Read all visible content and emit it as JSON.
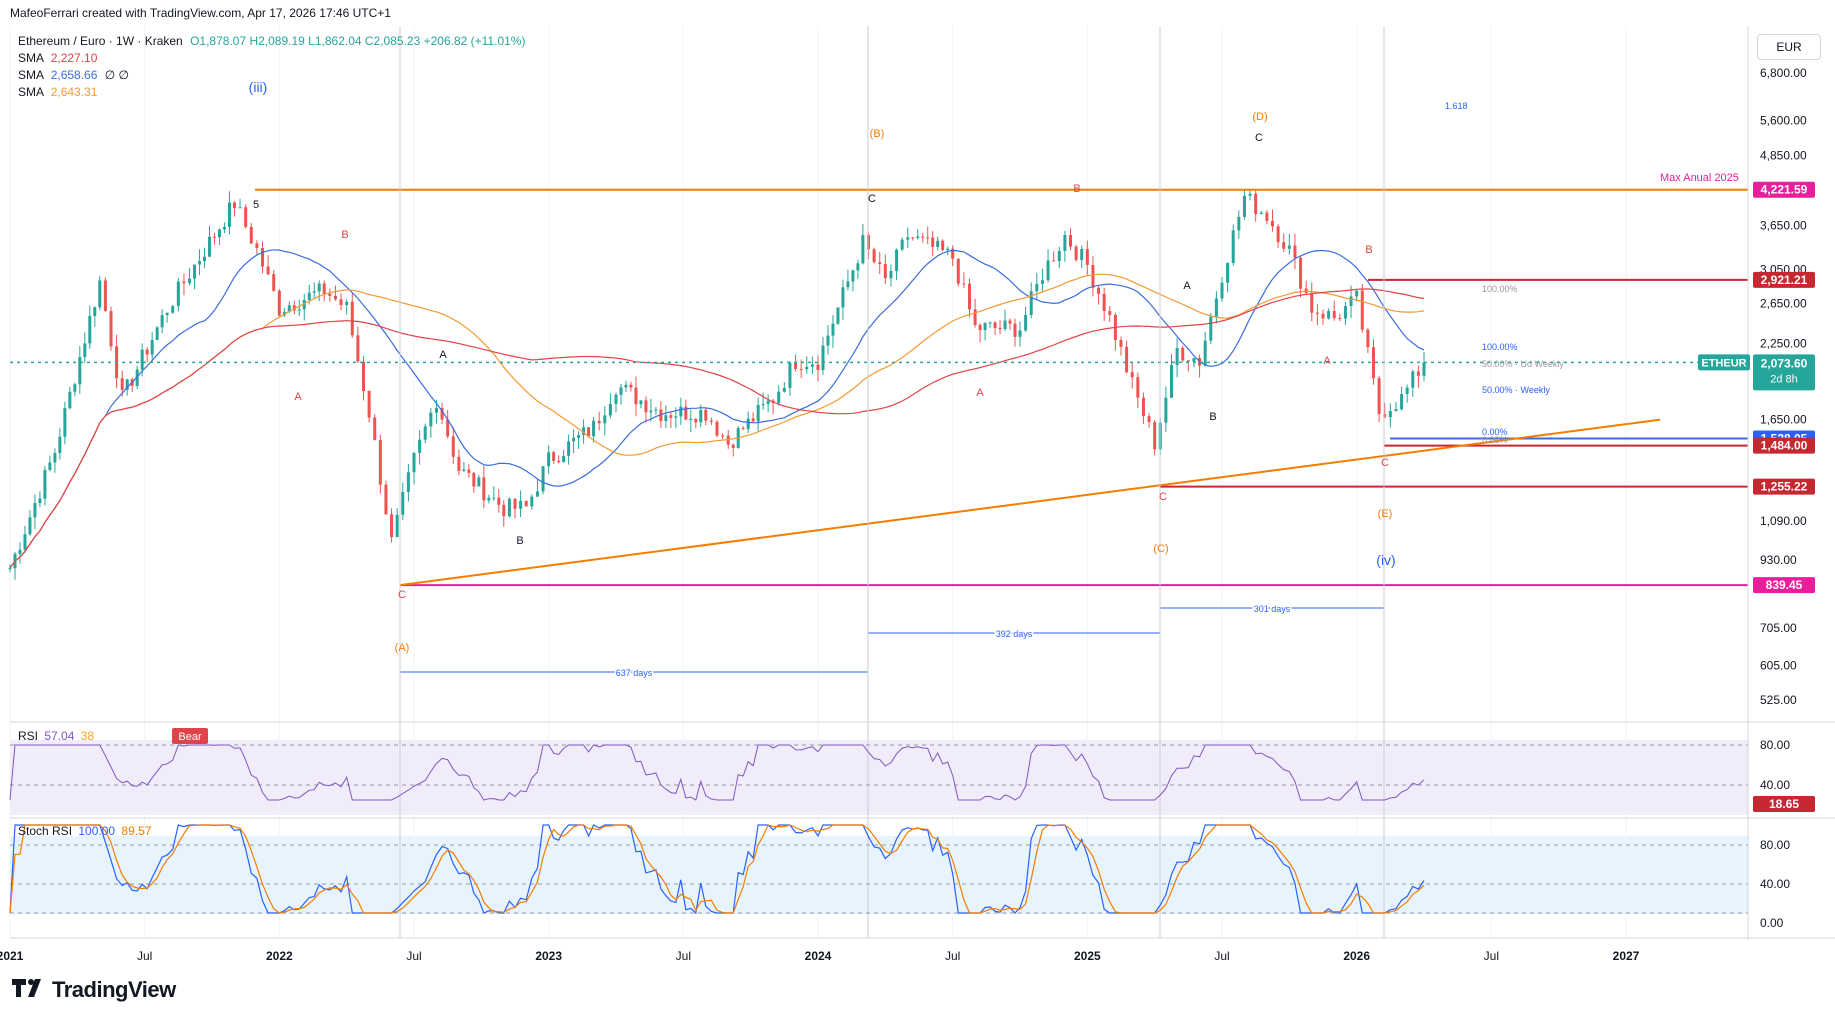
{
  "attribution": "MafeoFerrari created with TradingView.com, Apr 17, 2026 17:46 UTC+1",
  "currency": "EUR",
  "legend": {
    "symbol": "Ethereum / Euro · 1W · Kraken",
    "ohlc": "O1,878.07 H2,089.19 L1,862.04 C2,085.23 +206.82 (+11.01%)",
    "sma": [
      {
        "label": "SMA",
        "value": "2,227.10",
        "extra": "",
        "color": "#e0434a"
      },
      {
        "label": "SMA",
        "value": "2,658.66",
        "extra": "∅ ∅",
        "color": "#3b6de0"
      },
      {
        "label": "SMA",
        "value": "2,643.31",
        "extra": "",
        "color": "#f39a34"
      }
    ]
  },
  "rsi_legend": {
    "label": "RSI",
    "value": "57.04",
    "value2": "38"
  },
  "stoch_legend": {
    "label": "Stoch RSI",
    "value": "100.00",
    "value2": "89.57"
  },
  "brand": "TradingView",
  "colors": {
    "up": "#26a69a",
    "down": "#ef5350",
    "orange": "#f57c00",
    "magenta": "#e91e9c",
    "blue": "#3b6de0",
    "red": "#e0434a",
    "sma_orange": "#f39a34"
  },
  "chart_data": {
    "type": "line",
    "title": "Ethereum / Euro · 1W · Kraken",
    "y_scale": "log",
    "price_ticks": [
      "6,800.00",
      "5,600.00",
      "4,850.00",
      "3,650.00",
      "3,050.00",
      "2,650.00",
      "2,250.00",
      "1,650.00",
      "1,090.00",
      "930.00",
      "705.00",
      "605.00",
      "525.00"
    ],
    "time_ticks": [
      "2021",
      "Jul",
      "2022",
      "Jul",
      "2023",
      "Jul",
      "2024",
      "Jul",
      "2025",
      "Jul",
      "2026",
      "Jul",
      "2027"
    ],
    "price_tags": [
      {
        "value": "4,221.59",
        "color": "#e91e9c"
      },
      {
        "value": "2,921.21",
        "color": "#c62832"
      },
      {
        "value": "2,085.23",
        "color": "#26a69a",
        "symbol": "ETHEUR",
        "countdown": "2d 8h"
      },
      {
        "value": "2,073.60",
        "color": "#26a69a"
      },
      {
        "value": "1,528.05",
        "color": "#2962ff"
      },
      {
        "value": "1,484.00",
        "color": "#c62832"
      },
      {
        "value": "1,255.22",
        "color": "#c62832"
      },
      {
        "value": "839.45",
        "color": "#e91e9c"
      }
    ],
    "annotations": [
      "(iii)",
      "5",
      "B",
      "A",
      "A",
      "C",
      "B",
      "C",
      "(A)",
      "(B)",
      "A",
      "B",
      "C",
      "A",
      "C",
      "B",
      "A",
      "(C)",
      "C",
      "(D)",
      "A",
      "B",
      "(E)",
      "(iv)",
      "C"
    ],
    "horizontal_label": "Max Anual 2025",
    "fib_labels": [
      "1.618",
      "100.00%",
      "100.00%",
      "50.00% · Ud Weekly",
      "50.00% · Weekly",
      "0.00%",
      "0.00%"
    ],
    "duration_labels": [
      "637 days",
      "392 days",
      "301 days"
    ],
    "bear_label": "Bear",
    "close_series": [
      [
        "2021-01",
        900
      ],
      [
        "2021-03",
        1450
      ],
      [
        "2021-05",
        2900
      ],
      [
        "2021-06",
        1800
      ],
      [
        "2021-08",
        2600
      ],
      [
        "2021-09",
        3000
      ],
      [
        "2021-11",
        4000
      ],
      [
        "2021-12",
        3300
      ],
      [
        "2022-01",
        2600
      ],
      [
        "2022-03",
        2800
      ],
      [
        "2022-04",
        2600
      ],
      [
        "2022-05",
        1700
      ],
      [
        "2022-06",
        1000
      ],
      [
        "2022-07",
        1400
      ],
      [
        "2022-08",
        1800
      ],
      [
        "2022-09",
        1350
      ],
      [
        "2022-11",
        1150
      ],
      [
        "2022-12",
        1150
      ],
      [
        "2023-01",
        1400
      ],
      [
        "2023-03",
        1600
      ],
      [
        "2023-04",
        1900
      ],
      [
        "2023-06",
        1700
      ],
      [
        "2023-08",
        1700
      ],
      [
        "2023-09",
        1500
      ],
      [
        "2023-11",
        1800
      ],
      [
        "2023-12",
        2100
      ],
      [
        "2024-01",
        2100
      ],
      [
        "2024-03",
        3400
      ],
      [
        "2024-04",
        2900
      ],
      [
        "2024-05",
        3500
      ],
      [
        "2024-07",
        3200
      ],
      [
        "2024-08",
        2400
      ],
      [
        "2024-10",
        2400
      ],
      [
        "2024-11",
        3000
      ],
      [
        "2024-12",
        3500
      ],
      [
        "2025-01",
        3100
      ],
      [
        "2025-02",
        2500
      ],
      [
        "2025-03",
        1900
      ],
      [
        "2025-04",
        1500
      ],
      [
        "2025-05",
        2200
      ],
      [
        "2025-06",
        2100
      ],
      [
        "2025-07",
        3000
      ],
      [
        "2025-08",
        4100
      ],
      [
        "2025-09",
        3800
      ],
      [
        "2025-10",
        3300
      ],
      [
        "2025-11",
        2600
      ],
      [
        "2025-12",
        2500
      ],
      [
        "2026-01",
        2700
      ],
      [
        "2026-02",
        1700
      ],
      [
        "2026-03",
        1800
      ],
      [
        "2026-04",
        2085
      ]
    ],
    "rsi": {
      "label": "RSI",
      "levels": [
        "80.00",
        "40.00"
      ],
      "last_tag": "18.65"
    },
    "stoch_rsi": {
      "label": "Stoch RSI",
      "levels": [
        "80.00",
        "40.00",
        "0.00"
      ]
    }
  }
}
